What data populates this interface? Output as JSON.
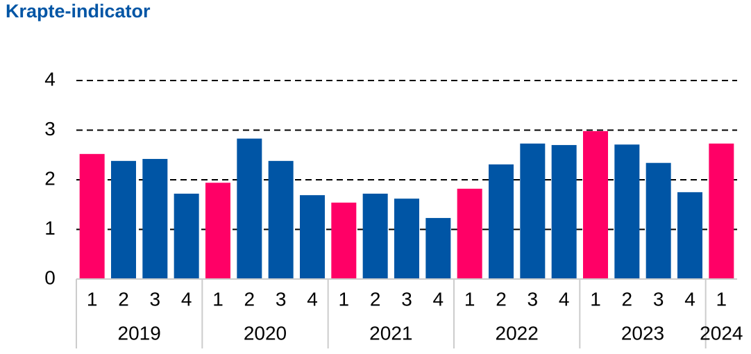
{
  "chart_data": {
    "type": "bar",
    "title": "Krapte-indicator",
    "groups": [
      {
        "name": "2019",
        "categories": [
          "1",
          "2",
          "3",
          "4"
        ]
      },
      {
        "name": "2020",
        "categories": [
          "1",
          "2",
          "3",
          "4"
        ]
      },
      {
        "name": "2021",
        "categories": [
          "1",
          "2",
          "3",
          "4"
        ]
      },
      {
        "name": "2022",
        "categories": [
          "1",
          "2",
          "3",
          "4"
        ]
      },
      {
        "name": "2023",
        "categories": [
          "1",
          "2",
          "3",
          "4"
        ]
      },
      {
        "name": "2024",
        "categories": [
          "1"
        ]
      }
    ],
    "values": [
      2.52,
      2.38,
      2.42,
      1.72,
      1.94,
      2.83,
      2.38,
      1.69,
      1.54,
      1.72,
      1.62,
      1.23,
      1.82,
      2.31,
      2.73,
      2.7,
      2.98,
      2.71,
      2.34,
      1.75,
      2.73
    ],
    "bar_colors": [
      "#ff0066",
      "#0055a5",
      "#0055a5",
      "#0055a5",
      "#ff0066",
      "#0055a5",
      "#0055a5",
      "#0055a5",
      "#ff0066",
      "#0055a5",
      "#0055a5",
      "#0055a5",
      "#ff0066",
      "#0055a5",
      "#0055a5",
      "#0055a5",
      "#ff0066",
      "#0055a5",
      "#0055a5",
      "#0055a5",
      "#ff0066"
    ],
    "ylim": [
      0,
      4
    ],
    "yticks": [
      0,
      1,
      2,
      3,
      4
    ],
    "grid": true
  }
}
